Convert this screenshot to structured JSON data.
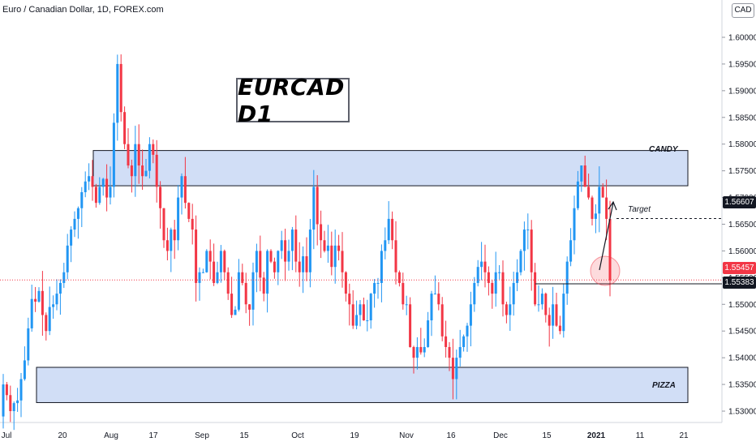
{
  "header": {
    "title": "Euro / Canadian Dollar, 1D, FOREX.com",
    "currency_button": "CAD"
  },
  "annotations": {
    "headline": "EURCAD D1",
    "zone_top": "CANDY",
    "zone_bottom": "PIZZA",
    "target": "Target"
  },
  "price_tags": {
    "target_level": "1.56607",
    "last_price": "1.55457",
    "support_level": "1.55383"
  },
  "colors": {
    "up": "#2196f3",
    "down": "#f23645",
    "zone_fill": "#c9d8f5",
    "zone_border": "#131722",
    "last_price_line": "#f23645",
    "target_tag_bg": "#131722",
    "last_tag_bg": "#f23645"
  },
  "chart_data": {
    "type": "candlestick",
    "symbol": "EURCAD",
    "timeframe": "1D",
    "ylim": [
      1.5275,
      1.602
    ],
    "y_ticks": [
      "1.53000",
      "1.53500",
      "1.54000",
      "1.54500",
      "1.55000",
      "1.55500",
      "1.56000",
      "1.56500",
      "1.57000",
      "1.57500",
      "1.58000",
      "1.58500",
      "1.59000",
      "1.59500",
      "1.60000"
    ],
    "x_ticks": [
      "Jul",
      "20",
      "Aug",
      "17",
      "Sep",
      "15",
      "Oct",
      "19",
      "Nov",
      "16",
      "Dec",
      "15",
      "2021",
      "11",
      "21"
    ],
    "zones": [
      {
        "name": "CANDY",
        "from": 1.5722,
        "to": 1.5788
      },
      {
        "name": "PIZZA",
        "from": 1.5316,
        "to": 1.5382
      }
    ],
    "levels": {
      "target": 1.56607,
      "last": 1.55457,
      "support": 1.55383
    },
    "closes": [
      1.535,
      1.533,
      1.53,
      1.5315,
      1.532,
      1.536,
      1.5395,
      1.5455,
      1.551,
      1.5505,
      1.5525,
      1.548,
      1.545,
      1.5495,
      1.55,
      1.552,
      1.554,
      1.556,
      1.561,
      1.564,
      1.566,
      1.568,
      1.571,
      1.573,
      1.574,
      1.572,
      1.569,
      1.572,
      1.5735,
      1.57,
      1.572,
      1.584,
      1.595,
      1.586,
      1.58,
      1.576,
      1.574,
      1.58,
      1.576,
      1.574,
      1.575,
      1.58,
      1.578,
      1.572,
      1.568,
      1.562,
      1.56,
      1.564,
      1.562,
      1.57,
      1.574,
      1.569,
      1.566,
      1.564,
      1.554,
      1.556,
      1.556,
      1.56,
      1.558,
      1.554,
      1.556,
      1.56,
      1.556,
      1.552,
      1.548,
      1.549,
      1.556,
      1.554,
      1.55,
      1.549,
      1.556,
      1.56,
      1.555,
      1.552,
      1.56,
      1.558,
      1.556,
      1.56,
      1.562,
      1.558,
      1.56,
      1.564,
      1.558,
      1.556,
      1.559,
      1.556,
      1.564,
      1.572,
      1.565,
      1.562,
      1.56,
      1.561,
      1.557,
      1.561,
      1.56,
      1.556,
      1.552,
      1.55,
      1.546,
      1.548,
      1.55,
      1.547,
      1.547,
      1.552,
      1.554,
      1.554,
      1.56,
      1.562,
      1.566,
      1.562,
      1.556,
      1.554,
      1.55,
      1.55,
      1.542,
      1.54,
      1.542,
      1.541,
      1.542,
      1.547,
      1.552,
      1.552,
      1.55,
      1.544,
      1.542,
      1.54,
      1.536,
      1.54,
      1.542,
      1.544,
      1.546,
      1.55,
      1.554,
      1.557,
      1.558,
      1.556,
      1.554,
      1.552,
      1.556,
      1.556,
      1.55,
      1.548,
      1.55,
      1.554,
      1.556,
      1.56,
      1.564,
      1.564,
      1.556,
      1.55,
      1.55,
      1.552,
      1.548,
      1.546,
      1.55,
      1.546,
      1.545,
      1.552,
      1.558,
      1.562,
      1.568,
      1.573,
      1.576,
      1.572,
      1.57,
      1.566,
      1.567,
      1.572,
      1.57,
      1.566,
      1.5545
    ]
  }
}
